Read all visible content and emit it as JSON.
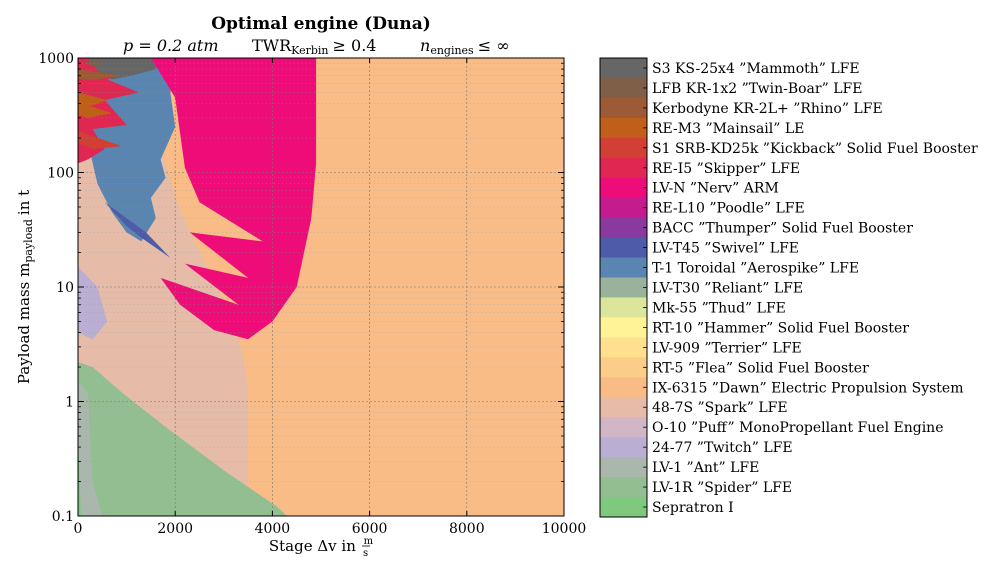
{
  "chart_data": {
    "type": "heatmap",
    "title": "Optimal engine (Duna)",
    "subtitle": {
      "pressure": "p = 0.2 atm",
      "twr": "TWR",
      "twr_sub": "Kerbin",
      "twr_rel": "≥ 0.4",
      "engines": "n",
      "engines_sub": "engines",
      "engines_rel": "≤ ∞"
    },
    "xlabel": "Stage Δv in",
    "xlabel_unit_num": "m",
    "xlabel_unit_den": "s",
    "ylabel": "Payload mass m",
    "ylabel_sub": "payload",
    "ylabel_unit": "in t",
    "xlim": [
      0,
      10000
    ],
    "ylim": [
      0.1,
      1000
    ],
    "yscale": "log",
    "grid": true,
    "legend_placement": "right, outside plot (colorbar)",
    "xticks": [
      {
        "value": 0,
        "label": "0"
      },
      {
        "value": 2000,
        "label": "2000"
      },
      {
        "value": 4000,
        "label": "4000"
      },
      {
        "value": 6000,
        "label": "6000"
      },
      {
        "value": 8000,
        "label": "8000"
      },
      {
        "value": 10000,
        "label": "10000"
      }
    ],
    "yticks": [
      {
        "value": 0.1,
        "label": "0.1"
      },
      {
        "value": 1,
        "label": "1"
      },
      {
        "value": 10,
        "label": "10"
      },
      {
        "value": 100,
        "label": "100"
      },
      {
        "value": 1000,
        "label": "1000"
      }
    ],
    "engines": [
      {
        "name": "S3 KS-25x4 ”Mammoth” LFE",
        "color": "#666666"
      },
      {
        "name": "LFB KR-1x2 ”Twin-Boar” LFE",
        "color": "#7f5f48"
      },
      {
        "name": "Kerbodyne KR-2L+ ”Rhino” LFE",
        "color": "#9c5a36"
      },
      {
        "name": "RE-M3 ”Mainsail” LE",
        "color": "#bf5f1a"
      },
      {
        "name": "S1 SRB-KD25k ”Kickback” Solid Fuel Booster",
        "color": "#d23f34"
      },
      {
        "name": "RE-I5 ”Skipper” LFE",
        "color": "#df2752"
      },
      {
        "name": "LV-N ”Nerv” ARM",
        "color": "#ee0d78"
      },
      {
        "name": "RE-L10 ”Poodle” LFE",
        "color": "#c41c8e"
      },
      {
        "name": "BACC ”Thumper” Solid Fuel Booster",
        "color": "#8a3a9e"
      },
      {
        "name": "LV-T45 ”Swivel” LFE",
        "color": "#4d5ba8"
      },
      {
        "name": "T-1 Toroidal ”Aerospike” LFE",
        "color": "#5985b0"
      },
      {
        "name": "LV-T30 ”Reliant” LFE",
        "color": "#98b29c"
      },
      {
        "name": "Mk-55 ”Thud” LFE",
        "color": "#dde59d"
      },
      {
        "name": "RT-10 ”Hammer” Solid Fuel Booster",
        "color": "#fff495"
      },
      {
        "name": "LV-909 ”Terrier” LFE",
        "color": "#fee08f"
      },
      {
        "name": "RT-5 ”Flea” Solid Fuel Booster",
        "color": "#fccd88"
      },
      {
        "name": "IX-6315 ”Dawn” Electric Propulsion System",
        "color": "#f9bc86"
      },
      {
        "name": "48-7S ”Spark” LFE",
        "color": "#e6bba8"
      },
      {
        "name": "O-10 ”Puff” MonoPropellant Fuel Engine",
        "color": "#d2b6c6"
      },
      {
        "name": "24-77 ”Twitch” LFE",
        "color": "#baaed3"
      },
      {
        "name": "LV-1 ”Ant” LFE",
        "color": "#aab7ac"
      },
      {
        "name": "LV-1R ”Spider” LFE",
        "color": "#92be92"
      },
      {
        "name": "Sepratron I",
        "color": "#7fc97f"
      }
    ],
    "regions": [
      {
        "engine": "IX-6315 ”Dawn” Electric Propulsion System",
        "points": [
          [
            0,
            0.1
          ],
          [
            10000,
            0.1
          ],
          [
            10000,
            1000
          ],
          [
            0,
            1000
          ]
        ]
      },
      {
        "engine": "48-7S ”Spark” LFE",
        "points": [
          [
            0,
            0.1
          ],
          [
            3500,
            0.1
          ],
          [
            3500,
            1.3
          ],
          [
            3400,
            2.5
          ],
          [
            3100,
            6
          ],
          [
            2700,
            14
          ],
          [
            2300,
            30
          ],
          [
            2000,
            60
          ],
          [
            1800,
            120
          ],
          [
            1600,
            250
          ],
          [
            1300,
            600
          ],
          [
            1000,
            1000
          ],
          [
            0,
            1000
          ]
        ]
      },
      {
        "engine": "T-1 Toroidal ”Aerospike” LFE",
        "points": [
          [
            0,
            1000
          ],
          [
            2000,
            1000
          ],
          [
            2000,
            900
          ],
          [
            1900,
            500
          ],
          [
            2000,
            250
          ],
          [
            1700,
            130
          ],
          [
            1800,
            90
          ],
          [
            1500,
            60
          ],
          [
            1600,
            40
          ],
          [
            1300,
            25
          ],
          [
            1000,
            30
          ],
          [
            700,
            45
          ],
          [
            400,
            80
          ],
          [
            250,
            150
          ],
          [
            300,
            300
          ],
          [
            450,
            600
          ]
        ]
      },
      {
        "engine": "LV-T45 ”Swivel” LFE",
        "points": [
          [
            550,
            55
          ],
          [
            1400,
            30
          ],
          [
            1900,
            18
          ],
          [
            1300,
            27
          ],
          [
            1000,
            34
          ],
          [
            800,
            42
          ]
        ]
      },
      {
        "engine": "RE-I5 ”Skipper” LFE",
        "points": [
          [
            0,
            1000
          ],
          [
            600,
            1000
          ],
          [
            1400,
            800
          ],
          [
            600,
            650
          ],
          [
            1250,
            500
          ],
          [
            550,
            430
          ],
          [
            1000,
            260
          ],
          [
            300,
            240
          ],
          [
            550,
            160
          ],
          [
            200,
            130
          ],
          [
            0,
            120
          ]
        ]
      },
      {
        "engine": "RE-M3 ”Mainsail” LE",
        "points": [
          [
            0,
            500
          ],
          [
            600,
            430
          ],
          [
            250,
            380
          ],
          [
            700,
            330
          ],
          [
            200,
            300
          ],
          [
            0,
            320
          ]
        ]
      },
      {
        "engine": "S3 KS-25x4 ”Mammoth” LFE",
        "points": [
          [
            200,
            1000
          ],
          [
            1600,
            1000
          ],
          [
            1600,
            800
          ],
          [
            1100,
            700
          ],
          [
            700,
            650
          ],
          [
            400,
            780
          ]
        ]
      },
      {
        "engine": "Kerbodyne KR-2L+ ”Rhino” LFE",
        "points": [
          [
            0,
            800
          ],
          [
            900,
            700
          ],
          [
            300,
            640
          ],
          [
            0,
            660
          ]
        ]
      },
      {
        "engine": "LFB KR-1x2 ”Twin-Boar” LFE",
        "points": [
          [
            80,
            950
          ],
          [
            700,
            900
          ],
          [
            250,
            860
          ]
        ]
      },
      {
        "engine": "S1 SRB-KD25k ”Kickback” Solid Fuel Booster",
        "points": [
          [
            0,
            230
          ],
          [
            900,
            170
          ],
          [
            300,
            160
          ],
          [
            0,
            180
          ]
        ]
      },
      {
        "engine": "LV-N ”Nerv” ARM",
        "points": [
          [
            1500,
            1000
          ],
          [
            4900,
            1000
          ],
          [
            4900,
            120
          ],
          [
            4800,
            40
          ],
          [
            4500,
            10
          ],
          [
            4000,
            5
          ],
          [
            3500,
            3.5
          ],
          [
            2800,
            4.2
          ],
          [
            2100,
            7
          ],
          [
            1700,
            12
          ],
          [
            3300,
            7
          ],
          [
            2200,
            16
          ],
          [
            3500,
            12
          ],
          [
            2300,
            30
          ],
          [
            3800,
            25
          ],
          [
            2500,
            55
          ],
          [
            2200,
            110
          ],
          [
            2100,
            220
          ],
          [
            2000,
            450
          ]
        ]
      },
      {
        "engine": "24-77 ”Twitch” LFE",
        "points": [
          [
            0,
            15
          ],
          [
            400,
            10
          ],
          [
            600,
            5
          ],
          [
            300,
            3.5
          ],
          [
            0,
            4
          ]
        ]
      },
      {
        "engine": "LV-1R ”Spider” LFE",
        "points": [
          [
            0,
            0.1
          ],
          [
            4300,
            0.1
          ],
          [
            4100,
            0.12
          ],
          [
            3000,
            0.25
          ],
          [
            1800,
            0.6
          ],
          [
            900,
            1.2
          ],
          [
            300,
            2
          ],
          [
            0,
            2.2
          ]
        ]
      },
      {
        "engine": "LV-1 ”Ant” LFE",
        "points": [
          [
            0,
            0.1
          ],
          [
            500,
            0.1
          ],
          [
            300,
            0.2
          ],
          [
            200,
            1.2
          ],
          [
            0,
            1.5
          ]
        ]
      },
      {
        "engine": "Sepratron I",
        "points": [
          [
            0,
            0.1
          ],
          [
            60,
            0.1
          ],
          [
            20,
            0.3
          ],
          [
            0,
            0.4
          ]
        ]
      }
    ]
  }
}
